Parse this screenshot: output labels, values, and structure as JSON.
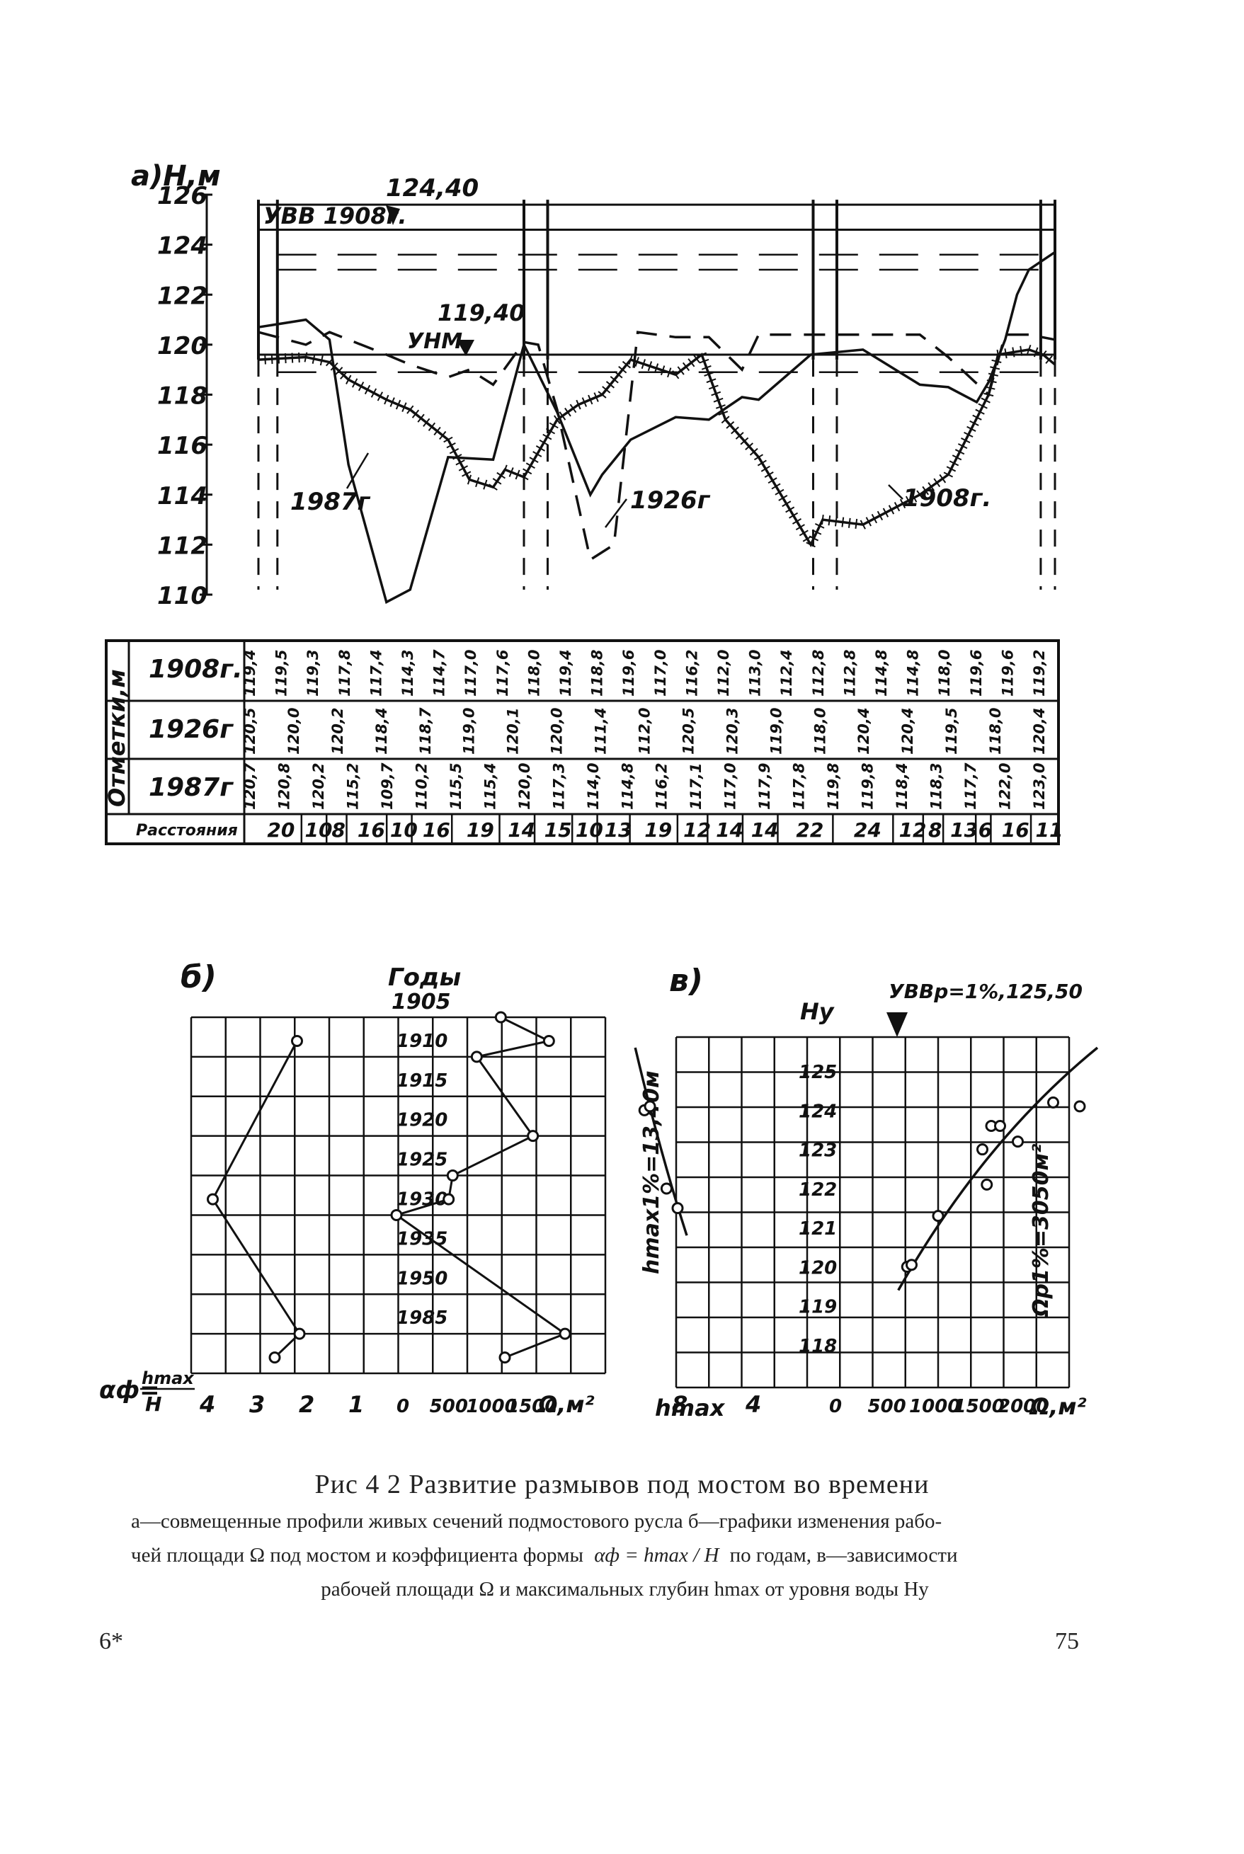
{
  "chart_data": [
    {
      "type": "line",
      "panel_label": "а)",
      "ylabel": "Н,м",
      "ylim": [
        110,
        126
      ],
      "yticks": [
        110,
        112,
        114,
        116,
        118,
        120,
        122,
        124,
        126
      ],
      "xlim": [
        0,
        336
      ],
      "annotations": {
        "uvv": "УВВ 1908г.",
        "uvv_value": "124,40",
        "unm": "УНМ",
        "unm_value": "119,40"
      },
      "levels": [
        124.6,
        119.6
      ],
      "series": [
        {
          "name": "1908г.",
          "x": [
            0,
            20,
            30,
            38,
            54,
            64,
            80,
            89,
            99,
            104,
            112,
            126,
            135,
            145,
            157,
            176,
            187,
            197,
            211,
            233,
            238,
            255,
            279,
            291,
            308,
            312,
            325,
            331,
            336
          ],
          "y": [
            119.4,
            119.5,
            119.3,
            118.6,
            117.8,
            117.4,
            116.2,
            114.6,
            114.3,
            115.0,
            114.7,
            117.0,
            117.6,
            118.0,
            119.4,
            118.8,
            119.6,
            117.0,
            115.5,
            112.0,
            113.0,
            112.8,
            114.0,
            114.8,
            118.0,
            119.6,
            119.8,
            119.6,
            119.2
          ]
        },
        {
          "name": "1926г",
          "x": [
            0,
            20,
            30,
            38,
            54,
            64,
            80,
            89,
            99,
            112,
            118,
            126,
            140,
            150,
            160,
            176,
            190,
            204,
            211,
            233,
            255,
            279,
            291,
            308,
            315,
            325,
            336
          ],
          "y": [
            120.5,
            120.0,
            120.5,
            120.2,
            119.6,
            119.2,
            118.7,
            119.0,
            118.4,
            120.1,
            120.0,
            117.4,
            111.4,
            112.0,
            120.5,
            120.3,
            120.3,
            119.0,
            120.4,
            120.4,
            120.4,
            120.4,
            119.5,
            118.0,
            120.4,
            120.4,
            120.2
          ]
        },
        {
          "name": "1987г",
          "x": [
            0,
            20,
            30,
            38,
            54,
            64,
            80,
            99,
            112,
            126,
            140,
            145,
            157,
            176,
            190,
            204,
            211,
            233,
            255,
            279,
            291,
            303,
            308,
            315,
            320,
            325,
            336
          ],
          "y": [
            120.7,
            121.0,
            120.2,
            115.2,
            109.7,
            110.2,
            115.5,
            115.4,
            120.0,
            117.3,
            114.0,
            114.8,
            116.2,
            117.1,
            117.0,
            117.9,
            117.8,
            119.6,
            119.8,
            118.4,
            118.3,
            117.7,
            118.5,
            120.2,
            122.0,
            123.0,
            123.7
          ]
        }
      ],
      "table": {
        "header": "Отметки,м",
        "rows": [
          {
            "label": "1908г.",
            "values": [
              "119,4",
              "119,5",
              "119,3",
              "117,8",
              "117,4",
              "114,3",
              "114,7",
              "117,0",
              "117,6",
              "118,0",
              "119,4",
              "118,8",
              "119,6",
              "117,0",
              "116,2",
              "112,0",
              "113,0",
              "112,4",
              "112,8",
              "112,8",
              "114,8",
              "114,8",
              "118,0",
              "119,6",
              "119,6",
              "119,2"
            ]
          },
          {
            "label": "1926г",
            "values": [
              "120,5",
              "120,0",
              "120,2",
              "118,4",
              "118,7",
              "119,0",
              "120,1",
              "120,0",
              "111,4",
              "112,0",
              "120,5",
              "120,3",
              "119,0",
              "118,0",
              "120,4",
              "120,4",
              "119,5",
              "118,0",
              "120,4"
            ]
          },
          {
            "label": "1987г",
            "values": [
              "120,7",
              "120,8",
              "120,2",
              "115,2",
              "109,7",
              "110,2",
              "115,5",
              "115,4",
              "120,0",
              "117,3",
              "114,0",
              "114,8",
              "116,2",
              "117,1",
              "117,0",
              "117,9",
              "117,8",
              "119,8",
              "119,8",
              "118,4",
              "118,3",
              "117,7",
              "122,0",
              "123,0"
            ]
          }
        ],
        "distance_label": "Расстояния",
        "distances": [
          "20",
          "10",
          "8",
          "16",
          "10",
          "16",
          "19",
          "14",
          "15",
          "10",
          "13",
          "19",
          "12",
          "14",
          "14",
          "22",
          "24",
          "12",
          "8",
          "13",
          "6",
          "16",
          "11"
        ]
      }
    },
    {
      "type": "line",
      "panel_label": "б)",
      "title": "Годы",
      "year_start": "1905",
      "years": [
        "1910",
        "1915",
        "1920",
        "1925",
        "1930",
        "1935",
        "1950",
        "1985"
      ],
      "left_axis": {
        "label": "αф = hmax/H",
        "ticks": [
          "4",
          "3",
          "2",
          "1"
        ]
      },
      "right_axis": {
        "label": "Ω,м²",
        "ticks": [
          "0",
          "500",
          "1000",
          "1500"
        ]
      },
      "series": [
        {
          "name": "αф",
          "x": [
            "1908",
            "1928",
            "1985",
            "1988"
          ],
          "y": [
            2.15,
            3.85,
            2.1,
            2.6
          ]
        },
        {
          "name": "Ω",
          "x": [
            "1905",
            "1908",
            "1910",
            "1920",
            "1925",
            "1928",
            "1930",
            "1985",
            "1988"
          ],
          "y": [
            1300,
            1900,
            1000,
            1700,
            700,
            650,
            0,
            2100,
            1350
          ]
        }
      ]
    },
    {
      "type": "scatter",
      "panel_label": "в)",
      "ylabel": "Ну",
      "ylim": [
        117,
        126
      ],
      "yticks": [
        "118",
        "119",
        "120",
        "121",
        "122",
        "123",
        "124",
        "125"
      ],
      "annotation": "УВВр=1%,125,50",
      "left_axis": {
        "label": "hmax",
        "ticks": [
          "8",
          "4"
        ],
        "note": "hmax1%=13,40м"
      },
      "right_axis": {
        "label": "Ω,м²",
        "ticks": [
          "0",
          "500",
          "1000",
          "1500",
          "2000"
        ],
        "note": "Ωр1%=3050м²"
      },
      "series": [
        {
          "name": "hmax",
          "x": [
            9.8,
            9.5,
            8.6,
            8.0
          ],
          "y": [
            124.0,
            124.1,
            122.0,
            121.5
          ]
        },
        {
          "name": "Ω",
          "x": [
            850,
            900,
            1200,
            1700,
            1800,
            1900,
            1750,
            2100,
            2500,
            2800
          ],
          "y": [
            120.0,
            120.05,
            121.3,
            123.0,
            123.6,
            123.6,
            122.1,
            123.2,
            124.2,
            124.1
          ]
        }
      ]
    }
  ],
  "caption": {
    "title": "Рис 4 2 Развитие размывов под мостом во времени",
    "line1": "а—совмещенные профили живых сечений подмостового русла б—графики изменения рабо-",
    "line2a": "чей площади Ω под мостом и коэффициента формы",
    "formula": "αф = hmax / H",
    "line2b": "по годам, в—зависимости",
    "line3": "рабочей площади Ω и максимальных глубин hmax от уровня воды Hу"
  },
  "page": {
    "signature": "6*",
    "number": "75"
  }
}
